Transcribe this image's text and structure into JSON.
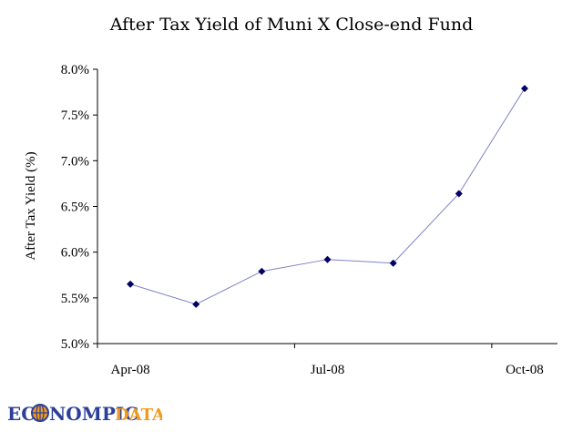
{
  "chart_data": {
    "type": "line",
    "title": "After Tax Yield of Muni X Close-end Fund",
    "xlabel": "",
    "ylabel": "After Tax Yield (%)",
    "x": [
      "2008-04",
      "2008-05",
      "2008-06",
      "2008-07",
      "2008-08",
      "2008-09",
      "2008-10"
    ],
    "x_tick_labels": [
      {
        "x": "2008-04",
        "label": "Apr-08"
      },
      {
        "x": "2008-07",
        "label": "Jul-08"
      },
      {
        "x": "2008-10",
        "label": "Oct-08"
      }
    ],
    "series": [
      {
        "values": [
          5.65,
          5.43,
          5.79,
          5.92,
          5.88,
          6.64,
          7.79
        ]
      }
    ],
    "ylim": [
      5.0,
      8.0
    ],
    "y_ticks": [
      5.0,
      5.5,
      6.0,
      6.5,
      7.0,
      7.5,
      8.0
    ],
    "y_tick_labels": [
      "5.0%",
      "5.5%",
      "6.0%",
      "6.5%",
      "7.0%",
      "7.5%",
      "8.0%"
    ],
    "grid": false,
    "legend": "none",
    "line_color": "#7f82c4",
    "marker_color": "#000066"
  },
  "logo": {
    "text": "ECONOMPICDATA",
    "colors": {
      "blue": "#2b3f9a",
      "orange": "#f29a1e"
    }
  }
}
